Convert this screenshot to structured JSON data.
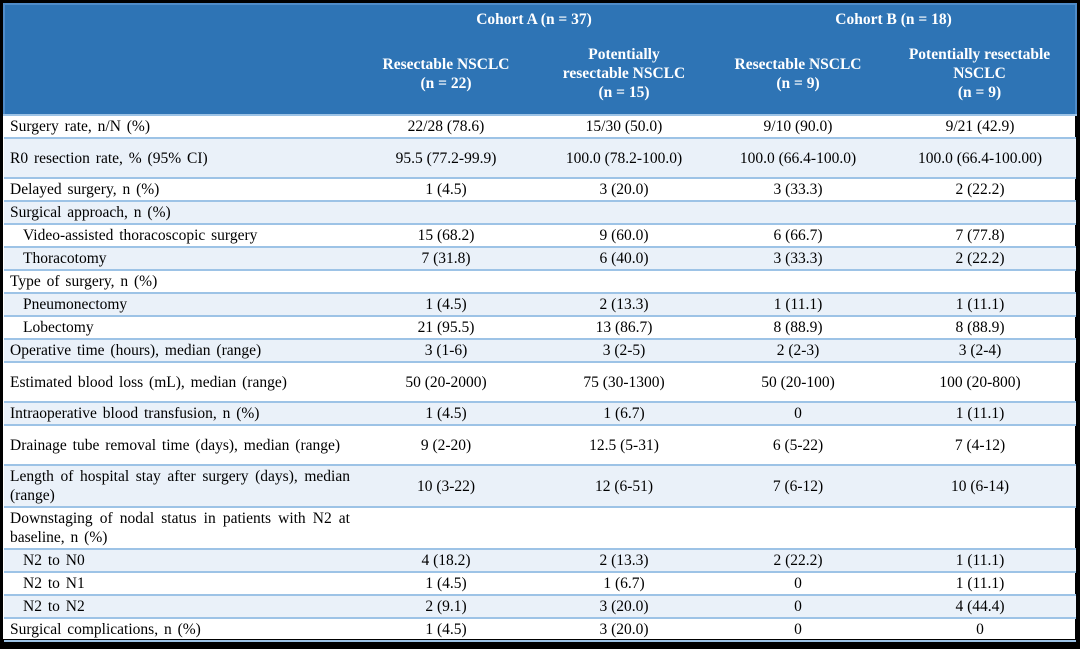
{
  "colors": {
    "header_bg": "#2E74B5",
    "header_border": "#4F8CC9",
    "header_text": "#FFFFFF",
    "row_border": "#9DC3E6",
    "shaded_row_bg": "#EAF1F9",
    "body_text": "#000000",
    "frame": "#000000"
  },
  "table": {
    "groups": [
      {
        "label": "Cohort A (n = 37)"
      },
      {
        "label": "Cohort B (n = 18)"
      }
    ],
    "columns": [
      "Resectable NSCLC\n(n = 22)",
      "Potentially\nresectable NSCLC\n(n = 15)",
      "Resectable NSCLC\n(n = 9)",
      "Potentially resectable\nNSCLC\n(n = 9)"
    ],
    "rows": [
      {
        "label": "Surgery rate, n/N (%)",
        "indent": false,
        "shaded": false,
        "tall": false,
        "values": [
          "22/28 (78.6)",
          "15/30 (50.0)",
          "9/10 (90.0)",
          "9/21 (42.9)"
        ]
      },
      {
        "label": "R0 resection rate, % (95% CI)",
        "indent": false,
        "shaded": true,
        "tall": true,
        "values": [
          "95.5 (77.2-99.9)",
          "100.0 (78.2-100.0)",
          "100.0 (66.4-100.0)",
          "100.0 (66.4-100.00)"
        ]
      },
      {
        "label": "Delayed surgery, n (%)",
        "indent": false,
        "shaded": false,
        "tall": false,
        "values": [
          "1 (4.5)",
          "3 (20.0)",
          "3 (33.3)",
          "2 (22.2)"
        ]
      },
      {
        "label": "Surgical approach, n (%)",
        "indent": false,
        "shaded": true,
        "tall": false,
        "values": [
          "",
          "",
          "",
          ""
        ]
      },
      {
        "label": "Video-assisted thoracoscopic surgery",
        "indent": true,
        "shaded": false,
        "tall": false,
        "values": [
          "15 (68.2)",
          "9 (60.0)",
          "6 (66.7)",
          "7 (77.8)"
        ]
      },
      {
        "label": "Thoracotomy",
        "indent": true,
        "shaded": true,
        "tall": false,
        "values": [
          "7 (31.8)",
          "6 (40.0)",
          "3 (33.3)",
          "2 (22.2)"
        ]
      },
      {
        "label": "Type of surgery, n (%)",
        "indent": false,
        "shaded": false,
        "tall": false,
        "values": [
          "",
          "",
          "",
          ""
        ]
      },
      {
        "label": "Pneumonectomy",
        "indent": true,
        "shaded": true,
        "tall": false,
        "values": [
          "1 (4.5)",
          "2 (13.3)",
          "1 (11.1)",
          "1 (11.1)"
        ]
      },
      {
        "label": "Lobectomy",
        "indent": true,
        "shaded": false,
        "tall": false,
        "values": [
          "21 (95.5)",
          "13 (86.7)",
          "8 (88.9)",
          "8 (88.9)"
        ]
      },
      {
        "label": "Operative time (hours), median (range)",
        "indent": false,
        "shaded": true,
        "tall": false,
        "values": [
          "3 (1-6)",
          "3 (2-5)",
          "2 (2-3)",
          "3 (2-4)"
        ]
      },
      {
        "label": "Estimated blood loss (mL), median (range)",
        "indent": false,
        "shaded": false,
        "tall": true,
        "values": [
          "50 (20-2000)",
          "75 (30-1300)",
          "50 (20-100)",
          "100 (20-800)"
        ]
      },
      {
        "label": "Intraoperative blood transfusion, n (%)",
        "indent": false,
        "shaded": true,
        "tall": false,
        "values": [
          "1 (4.5)",
          "1 (6.7)",
          "0",
          "1 (11.1)"
        ]
      },
      {
        "label": "Drainage tube removal time (days), median (range)",
        "indent": false,
        "shaded": false,
        "tall": true,
        "values": [
          "9 (2-20)",
          "12.5 (5-31)",
          "6 (5-22)",
          "7 (4-12)"
        ]
      },
      {
        "label": "Length of hospital stay after surgery (days), median (range)",
        "indent": false,
        "shaded": true,
        "tall": true,
        "values": [
          "10 (3-22)",
          "12 (6-51)",
          "7 (6-12)",
          "10 (6-14)"
        ]
      },
      {
        "label": "Downstaging of nodal status in patients with N2 at baseline, n (%)",
        "indent": false,
        "shaded": false,
        "tall": true,
        "values": [
          "",
          "",
          "",
          ""
        ]
      },
      {
        "label": "N2 to N0",
        "indent": true,
        "shaded": true,
        "tall": false,
        "values": [
          "4 (18.2)",
          "2 (13.3)",
          "2 (22.2)",
          "1 (11.1)"
        ]
      },
      {
        "label": "N2 to N1",
        "indent": true,
        "shaded": false,
        "tall": false,
        "values": [
          "1 (4.5)",
          "1 (6.7)",
          "0",
          "1 (11.1)"
        ]
      },
      {
        "label": "N2 to N2",
        "indent": true,
        "shaded": true,
        "tall": false,
        "values": [
          "2 (9.1)",
          "3 (20.0)",
          "0",
          "4 (44.4)"
        ]
      },
      {
        "label": "Surgical complications, n (%)",
        "indent": false,
        "shaded": false,
        "tall": false,
        "values": [
          "1 (4.5)",
          "3 (20.0)",
          "0",
          "0"
        ]
      }
    ]
  }
}
